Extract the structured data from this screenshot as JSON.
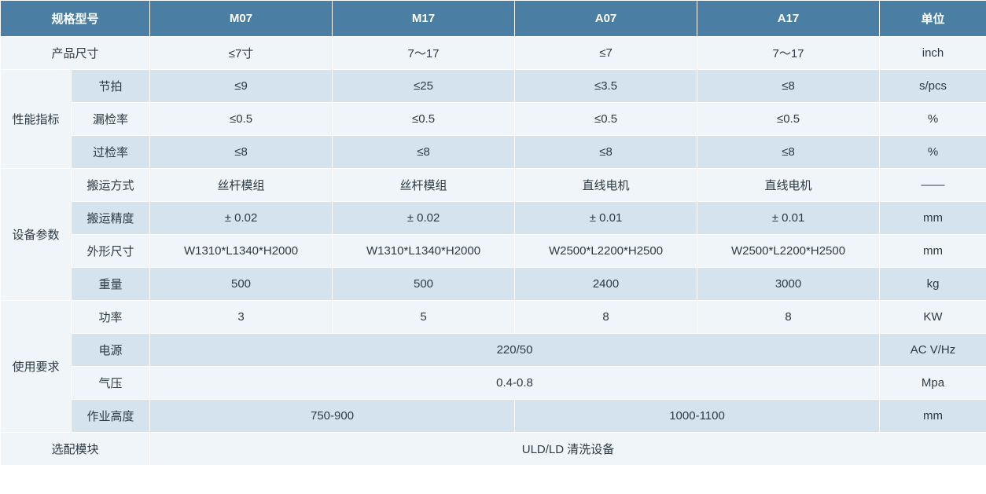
{
  "colors": {
    "header_bg": "#4a7fa3",
    "header_text": "#ffffff",
    "row_even": "#eff5f8",
    "row_odd": "#d4e3ed",
    "text": "#2e3a45",
    "border": "#ffffff"
  },
  "fonts": {
    "size_pt": 15,
    "header_weight": "bold"
  },
  "columns": {
    "spec_model": "规格型号",
    "m07": "M07",
    "m17": "M17",
    "a07": "A07",
    "a17": "A17",
    "unit": "单位"
  },
  "rows": {
    "product_size": {
      "label": "产品尺寸",
      "m07": "≤7寸",
      "m17": "7～17",
      "a07": "≤7",
      "a17": "7～17",
      "unit": "inch"
    },
    "performance": {
      "label": "性能指标",
      "tact": {
        "label": "节拍",
        "m07": "≤9",
        "m17": "≤25",
        "a07": "≤3.5",
        "a17": "≤8",
        "unit": "s/pcs"
      },
      "miss_rate": {
        "label": "漏检率",
        "m07": "≤0.5",
        "m17": "≤0.5",
        "a07": "≤0.5",
        "a17": "≤0.5",
        "unit": "%"
      },
      "over_rate": {
        "label": "过检率",
        "m07": "≤8",
        "m17": "≤8",
        "a07": "≤8",
        "a17": "≤8",
        "unit": "%"
      }
    },
    "equipment": {
      "label": "设备参数",
      "transport_mode": {
        "label": "搬运方式",
        "m07": "丝杆模组",
        "m17": "丝杆模组",
        "a07": "直线电机",
        "a17": "直线电机",
        "unit": "——"
      },
      "transport_accuracy": {
        "label": "搬运精度",
        "m07": "± 0.02",
        "m17": "± 0.02",
        "a07": "± 0.01",
        "a17": "± 0.01",
        "unit": "mm"
      },
      "dimensions": {
        "label": "外形尺寸",
        "m07": "W1310*L1340*H2000",
        "m17": "W1310*L1340*H2000",
        "a07": "W2500*L2200*H2500",
        "a17": "W2500*L2200*H2500",
        "unit": "mm"
      },
      "weight": {
        "label": "重量",
        "m07": "500",
        "m17": "500",
        "a07": "2400",
        "a17": "3000",
        "unit": "kg"
      }
    },
    "usage": {
      "label": "使用要求",
      "power": {
        "label": "功率",
        "m07": "3",
        "m17": "5",
        "a07": "8",
        "a17": "8",
        "unit": "KW"
      },
      "power_supply": {
        "label": "电源",
        "value": "220/50",
        "unit": "AC V/Hz"
      },
      "air": {
        "label": "气压",
        "value": "0.4-0.8",
        "unit": "Mpa"
      },
      "work_height": {
        "label": "作业高度",
        "left": "750-900",
        "right": "1000-1100",
        "unit": "mm"
      }
    },
    "options": {
      "label": "选配模块",
      "value": "ULD/LD   清洗设备"
    }
  }
}
